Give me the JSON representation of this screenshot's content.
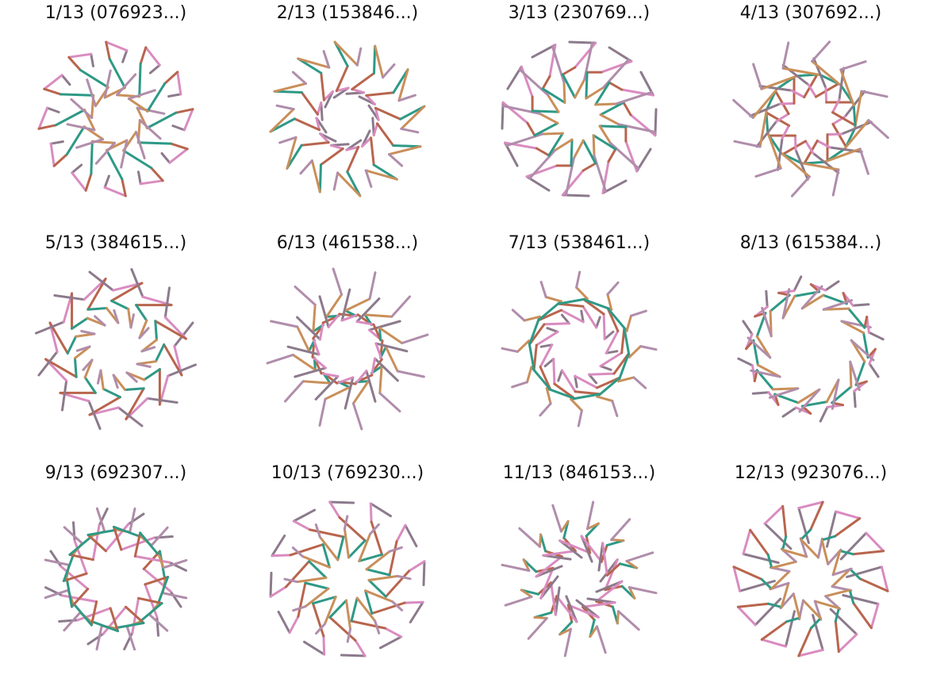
{
  "panels": [
    {
      "title": "1/13 (076923...)",
      "digits": [
        0,
        7,
        6,
        9,
        2,
        3
      ]
    },
    {
      "title": "2/13 (153846...)",
      "digits": [
        1,
        5,
        3,
        8,
        4,
        6
      ]
    },
    {
      "title": "3/13 (230769...)",
      "digits": [
        2,
        3,
        0,
        7,
        6,
        9
      ]
    },
    {
      "title": "4/13 (307692...)",
      "digits": [
        3,
        0,
        7,
        6,
        9,
        2
      ]
    },
    {
      "title": "5/13 (384615...)",
      "digits": [
        3,
        8,
        4,
        6,
        1,
        5
      ]
    },
    {
      "title": "6/13 (461538...)",
      "digits": [
        4,
        6,
        1,
        5,
        3,
        8
      ]
    },
    {
      "title": "7/13 (538461...)",
      "digits": [
        5,
        3,
        8,
        4,
        6,
        1
      ]
    },
    {
      "title": "8/13 (615384...)",
      "digits": [
        6,
        1,
        5,
        3,
        8,
        4
      ]
    },
    {
      "title": "9/13 (692307...)",
      "digits": [
        6,
        9,
        2,
        3,
        0,
        7
      ]
    },
    {
      "title": "10/13 (769230...)",
      "digits": [
        7,
        6,
        9,
        2,
        3,
        0
      ]
    },
    {
      "title": "11/13 (846153...)",
      "digits": [
        8,
        4,
        6,
        1,
        5,
        3
      ]
    },
    {
      "title": "12/13 (923076...)",
      "digits": [
        9,
        2,
        3,
        0,
        7,
        6
      ]
    }
  ],
  "segment_colors": [
    "#8c7a8c",
    "#d98cc0",
    "#b8654d",
    "#2e9986",
    "#c98f5a",
    "#b08dab"
  ]
}
